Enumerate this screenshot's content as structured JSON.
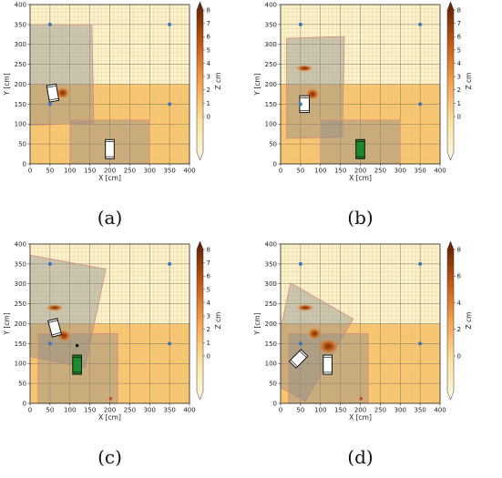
{
  "figure": {
    "panels": [
      {
        "caption": "(a)",
        "chart_data": {
          "type": "heatmap",
          "xlabel": "X [cm]",
          "ylabel": "Y [cm]",
          "xlim": [
            0,
            400
          ],
          "ylim": [
            0,
            400
          ],
          "xticks": [
            "0",
            "50",
            "100",
            "150",
            "200",
            "250",
            "300",
            "350",
            "400"
          ],
          "yticks": [
            "0",
            "50",
            "100",
            "150",
            "200",
            "250",
            "300",
            "350",
            "400"
          ],
          "grid": true,
          "colorbar": {
            "label": "Z cm",
            "ticks": [
              "0",
              "1",
              "2",
              "3",
              "4",
              "5",
              "6",
              "7",
              "8"
            ],
            "ticks_values": [
              0,
              1,
              2,
              3,
              4,
              5,
              6,
              7,
              8
            ]
          },
          "anchors": [
            {
              "x": 50,
              "y": 350
            },
            {
              "x": 350,
              "y": 350
            },
            {
              "x": 50,
              "y": 150
            },
            {
              "x": 350,
              "y": 150
            }
          ],
          "regions": [
            {
              "kind": "field_of_view",
              "points": [
                [
                  0,
                  350
                ],
                [
                  155,
                  350
                ],
                [
                  160,
                  103
                ],
                [
                  0,
                  97
                ]
              ]
            },
            {
              "kind": "field_of_view",
              "points": [
                [
                  100,
                  110
                ],
                [
                  300,
                  110
                ],
                [
                  300,
                  0
                ],
                [
                  100,
                  0
                ]
              ]
            }
          ],
          "objects": [
            {
              "kind": "box",
              "x": 57,
              "y": 178,
              "w": 24,
              "h": 42,
              "angle": -10,
              "color": "#ffffff"
            },
            {
              "kind": "box",
              "x": 200,
              "y": 37,
              "w": 22,
              "h": 48,
              "angle": 0,
              "color": "#ffffff"
            }
          ],
          "bumps": [
            {
              "x": 82,
              "y": 178,
              "rx": 8,
              "ry": 7
            }
          ]
        }
      },
      {
        "caption": "(b)",
        "chart_data": {
          "type": "heatmap",
          "xlabel": "X [cm]",
          "ylabel": "Y [cm]",
          "xlim": [
            0,
            400
          ],
          "ylim": [
            0,
            400
          ],
          "xticks": [
            "0",
            "50",
            "100",
            "150",
            "200",
            "250",
            "300",
            "350",
            "400"
          ],
          "yticks": [
            "0",
            "50",
            "100",
            "150",
            "200",
            "250",
            "300",
            "350",
            "400"
          ],
          "grid": true,
          "colorbar": {
            "label": "Z cm",
            "ticks": [
              "0",
              "1",
              "2",
              "3",
              "4",
              "5",
              "6",
              "7",
              "8"
            ],
            "ticks_values": [
              0,
              1,
              2,
              3,
              4,
              5,
              6,
              7,
              8
            ]
          },
          "anchors": [
            {
              "x": 50,
              "y": 350
            },
            {
              "x": 350,
              "y": 350
            },
            {
              "x": 50,
              "y": 150
            },
            {
              "x": 350,
              "y": 150
            }
          ],
          "regions": [
            {
              "kind": "field_of_view",
              "points": [
                [
                  15,
                  315
                ],
                [
                  160,
                  320
                ],
                [
                  155,
                  67
                ],
                [
                  15,
                  64
                ]
              ]
            },
            {
              "kind": "field_of_view",
              "points": [
                [
                  100,
                  110
                ],
                [
                  300,
                  110
                ],
                [
                  300,
                  0
                ],
                [
                  100,
                  0
                ]
              ]
            }
          ],
          "objects": [
            {
              "kind": "box",
              "x": 60,
              "y": 150,
              "w": 24,
              "h": 42,
              "angle": 0,
              "color": "#ffffff"
            },
            {
              "kind": "box",
              "x": 200,
              "y": 37,
              "w": 22,
              "h": 48,
              "angle": 0,
              "color": "#1c8a2a"
            }
          ],
          "bumps": [
            {
              "x": 80,
              "y": 175,
              "rx": 8,
              "ry": 7
            },
            {
              "x": 60,
              "y": 240,
              "rx": 10,
              "ry": 4
            }
          ]
        }
      },
      {
        "caption": "(c)",
        "chart_data": {
          "type": "heatmap",
          "xlabel": "X [cm]",
          "ylabel": "Y [cm]",
          "xlim": [
            0,
            400
          ],
          "ylim": [
            0,
            400
          ],
          "xticks": [
            "0",
            "50",
            "100",
            "150",
            "200",
            "250",
            "300",
            "350",
            "400"
          ],
          "yticks": [
            "0",
            "50",
            "100",
            "150",
            "200",
            "250",
            "300",
            "350",
            "400"
          ],
          "grid": true,
          "colorbar": {
            "label": "Z cm",
            "ticks": [
              "0",
              "1",
              "2",
              "3",
              "4",
              "5",
              "6",
              "7",
              "8"
            ],
            "ticks_values": [
              0,
              1,
              2,
              3,
              4,
              5,
              6,
              7,
              8
            ]
          },
          "anchors": [
            {
              "x": 50,
              "y": 350
            },
            {
              "x": 350,
              "y": 350
            },
            {
              "x": 50,
              "y": 150
            },
            {
              "x": 350,
              "y": 150
            }
          ],
          "regions": [
            {
              "kind": "field_of_view",
              "points": [
                [
                  0,
                  372
                ],
                [
                  190,
                  337
                ],
                [
                  138,
                  90
                ],
                [
                  0,
                  117
                ]
              ]
            },
            {
              "kind": "field_of_view",
              "points": [
                [
                  20,
                  175
                ],
                [
                  220,
                  175
                ],
                [
                  220,
                  0
                ],
                [
                  20,
                  0
                ]
              ]
            }
          ],
          "objects": [
            {
              "kind": "box",
              "x": 62,
              "y": 190,
              "w": 24,
              "h": 42,
              "angle": -15,
              "color": "#ffffff"
            },
            {
              "kind": "box",
              "x": 118,
              "y": 97,
              "w": 22,
              "h": 48,
              "angle": 0,
              "color": "#1c8a2a"
            }
          ],
          "bumps": [
            {
              "x": 85,
              "y": 170,
              "rx": 8,
              "ry": 7
            },
            {
              "x": 62,
              "y": 240,
              "rx": 10,
              "ry": 4
            }
          ],
          "markers": [
            {
              "x": 118,
              "y": 145,
              "color": "#111111"
            },
            {
              "x": 202,
              "y": 12,
              "color": "#d93a2a"
            }
          ]
        }
      },
      {
        "caption": "(d)",
        "chart_data": {
          "type": "heatmap",
          "xlabel": "X [cm]",
          "ylabel": "Y [cm]",
          "xlim": [
            0,
            400
          ],
          "ylim": [
            0,
            400
          ],
          "xticks": [
            "0",
            "50",
            "100",
            "150",
            "200",
            "250",
            "300",
            "350",
            "400"
          ],
          "yticks": [
            "0",
            "50",
            "100",
            "150",
            "200",
            "250",
            "300",
            "350",
            "400"
          ],
          "grid": true,
          "colorbar": {
            "label": "Z cm",
            "ticks": [
              "0",
              "2",
              "4",
              "6",
              "8"
            ],
            "ticks_values": [
              0,
              2,
              4,
              6,
              8
            ]
          },
          "anchors": [
            {
              "x": 50,
              "y": 350
            },
            {
              "x": 350,
              "y": 350
            },
            {
              "x": 50,
              "y": 150
            },
            {
              "x": 350,
              "y": 150
            }
          ],
          "regions": [
            {
              "kind": "field_of_view",
              "points": [
                [
                  25,
                  302
                ],
                [
                  182,
                  212
                ],
                [
                  62,
                  5
                ],
                [
                  0,
                  40
                ],
                [
                  0,
                  187
                ]
              ]
            },
            {
              "kind": "field_of_view",
              "points": [
                [
                  20,
                  175
                ],
                [
                  220,
                  175
                ],
                [
                  220,
                  0
                ],
                [
                  20,
                  0
                ]
              ]
            }
          ],
          "objects": [
            {
              "kind": "box",
              "x": 45,
              "y": 112,
              "w": 24,
              "h": 42,
              "angle": 45,
              "color": "#ffffff"
            },
            {
              "kind": "box",
              "x": 118,
              "y": 97,
              "w": 22,
              "h": 48,
              "angle": 0,
              "color": "#ffffff"
            }
          ],
          "bumps": [
            {
              "x": 85,
              "y": 175,
              "rx": 8,
              "ry": 7
            },
            {
              "x": 120,
              "y": 143,
              "rx": 12,
              "ry": 9
            },
            {
              "x": 62,
              "y": 240,
              "rx": 10,
              "ry": 4
            }
          ],
          "markers": [
            {
              "x": 202,
              "y": 12,
              "color": "#d93a2a"
            }
          ]
        }
      }
    ]
  }
}
